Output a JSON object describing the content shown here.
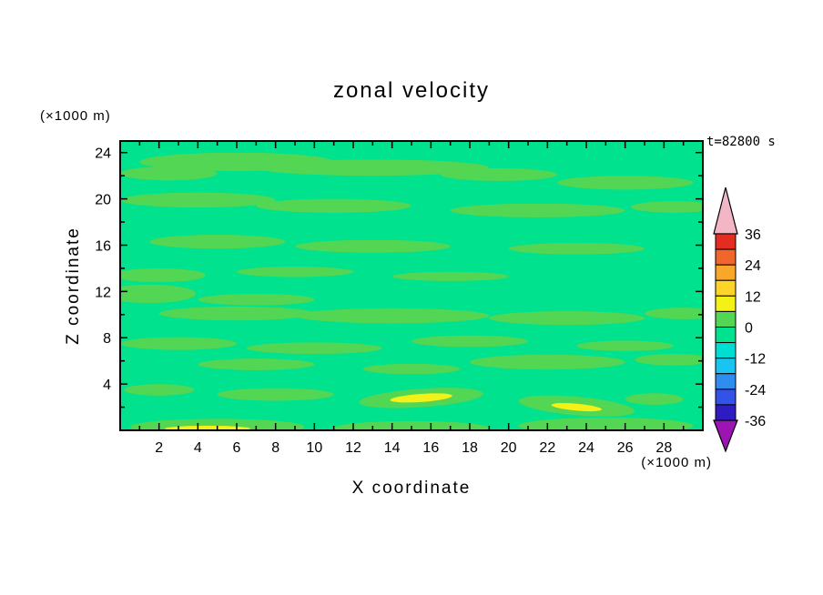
{
  "title": "zonal velocity",
  "time_label": "t=82800 s",
  "axes": {
    "x_label": "X coordinate",
    "x_units": "(×1000 m)",
    "y_label": "Z coordinate",
    "y_units": "(×1000 m)"
  },
  "chart_data": {
    "type": "heatmap",
    "title": "zonal velocity",
    "xlabel": "X coordinate (×1000 m)",
    "ylabel": "Z coordinate (×1000 m)",
    "time_label": "t=82800 s",
    "xlim": [
      0,
      30
    ],
    "ylim": [
      0,
      25
    ],
    "x_ticks": [
      2,
      4,
      6,
      8,
      10,
      12,
      14,
      16,
      18,
      20,
      22,
      24,
      26,
      28
    ],
    "y_ticks": [
      4,
      8,
      12,
      16,
      20,
      24
    ],
    "grid": false,
    "colorbar_position": "right",
    "colorbar": {
      "min": -36,
      "max": 36,
      "band_step": 6,
      "tick_labels": [
        36,
        24,
        12,
        0,
        -12,
        -24,
        -36
      ],
      "over_color": "#f2b6c6",
      "under_color": "#9c14b4",
      "bands": [
        {
          "range": [
            30,
            36
          ],
          "color": "#e42d22"
        },
        {
          "range": [
            24,
            30
          ],
          "color": "#f1662a"
        },
        {
          "range": [
            18,
            24
          ],
          "color": "#f9a72b"
        },
        {
          "range": [
            12,
            18
          ],
          "color": "#ffd428"
        },
        {
          "range": [
            6,
            12
          ],
          "color": "#f4f116"
        },
        {
          "range": [
            0,
            6
          ],
          "color": "#52d653"
        },
        {
          "range": [
            -6,
            0
          ],
          "color": "#00e28d"
        },
        {
          "range": [
            -12,
            -6
          ],
          "color": "#00ded2"
        },
        {
          "range": [
            -18,
            -12
          ],
          "color": "#19c4f1"
        },
        {
          "range": [
            -24,
            -18
          ],
          "color": "#2f8df0"
        },
        {
          "range": [
            -30,
            -24
          ],
          "color": "#3352e8"
        },
        {
          "range": [
            -36,
            -30
          ],
          "color": "#2d1dc0"
        }
      ]
    },
    "field": {
      "background_level": "-6..0",
      "background_color": "#00e28d",
      "blobs": [
        {
          "x": 6,
          "z": 23.2,
          "rx": 5,
          "rz": 0.8,
          "level": "0..6"
        },
        {
          "x": 13,
          "z": 22.7,
          "rx": 6,
          "rz": 0.7,
          "level": "0..6"
        },
        {
          "x": 2.5,
          "z": 22.2,
          "rx": 2.5,
          "rz": 0.6,
          "level": "0..6"
        },
        {
          "x": 19.5,
          "z": 22.1,
          "rx": 3,
          "rz": 0.55,
          "level": "0..6"
        },
        {
          "x": 26,
          "z": 21.4,
          "rx": 3.5,
          "rz": 0.6,
          "level": "0..6"
        },
        {
          "x": 4,
          "z": 19.9,
          "rx": 4,
          "rz": 0.65,
          "level": "0..6"
        },
        {
          "x": 11,
          "z": 19.4,
          "rx": 4,
          "rz": 0.6,
          "level": "0..6"
        },
        {
          "x": 21.5,
          "z": 19,
          "rx": 4.5,
          "rz": 0.6,
          "level": "0..6"
        },
        {
          "x": 28.5,
          "z": 19.3,
          "rx": 2.2,
          "rz": 0.5,
          "level": "0..6"
        },
        {
          "x": 5,
          "z": 16.3,
          "rx": 3.5,
          "rz": 0.6,
          "level": "0..6"
        },
        {
          "x": 13,
          "z": 15.9,
          "rx": 4,
          "rz": 0.55,
          "level": "0..6"
        },
        {
          "x": 23.5,
          "z": 15.7,
          "rx": 3.5,
          "rz": 0.5,
          "level": "0..6"
        },
        {
          "x": 2,
          "z": 13.4,
          "rx": 2.4,
          "rz": 0.6,
          "level": "0..6"
        },
        {
          "x": 9,
          "z": 13.7,
          "rx": 3,
          "rz": 0.45,
          "level": "0..6"
        },
        {
          "x": 17,
          "z": 13.3,
          "rx": 3,
          "rz": 0.4,
          "level": "0..6"
        },
        {
          "x": 1.5,
          "z": 11.8,
          "rx": 2.4,
          "rz": 0.8,
          "level": "0..6"
        },
        {
          "x": 7,
          "z": 11.3,
          "rx": 3,
          "rz": 0.5,
          "level": "0..6"
        },
        {
          "x": 6,
          "z": 10.1,
          "rx": 4,
          "rz": 0.6,
          "level": "0..6"
        },
        {
          "x": 14,
          "z": 9.9,
          "rx": 5,
          "rz": 0.65,
          "level": "0..6"
        },
        {
          "x": 23,
          "z": 9.7,
          "rx": 4,
          "rz": 0.6,
          "level": "0..6"
        },
        {
          "x": 29,
          "z": 10.1,
          "rx": 2,
          "rz": 0.5,
          "level": "0..6"
        },
        {
          "x": 3,
          "z": 7.5,
          "rx": 3,
          "rz": 0.55,
          "level": "0..6"
        },
        {
          "x": 10,
          "z": 7.1,
          "rx": 3.5,
          "rz": 0.5,
          "level": "0..6"
        },
        {
          "x": 18,
          "z": 7.7,
          "rx": 3,
          "rz": 0.5,
          "level": "0..6"
        },
        {
          "x": 26,
          "z": 7.3,
          "rx": 2.5,
          "rz": 0.45,
          "level": "0..6"
        },
        {
          "x": 7,
          "z": 5.7,
          "rx": 3,
          "rz": 0.5,
          "level": "0..6"
        },
        {
          "x": 15,
          "z": 5.3,
          "rx": 2.5,
          "rz": 0.45,
          "level": "0..6"
        },
        {
          "x": 22,
          "z": 5.9,
          "rx": 4,
          "rz": 0.65,
          "level": "0..6"
        },
        {
          "x": 28.5,
          "z": 6.1,
          "rx": 2,
          "rz": 0.5,
          "level": "0..6"
        },
        {
          "x": 2,
          "z": 3.5,
          "rx": 1.8,
          "rz": 0.5,
          "level": "0..6"
        },
        {
          "x": 8,
          "z": 3.1,
          "rx": 3,
          "rz": 0.55,
          "level": "0..6"
        },
        {
          "x": 15.5,
          "z": 2.8,
          "rx": 3.2,
          "rz": 0.8,
          "rot": -4,
          "level": "0..6"
        },
        {
          "x": 23.5,
          "z": 2.1,
          "rx": 3,
          "rz": 0.8,
          "rot": 5,
          "level": "0..6"
        },
        {
          "x": 27.5,
          "z": 2.7,
          "rx": 1.5,
          "rz": 0.5,
          "level": "0..6"
        },
        {
          "x": 5,
          "z": 0.3,
          "rx": 4.5,
          "rz": 0.7,
          "level": "0..6"
        },
        {
          "x": 15,
          "z": 0.2,
          "rx": 4,
          "rz": 0.6,
          "level": "0..6"
        },
        {
          "x": 25,
          "z": 0.4,
          "rx": 4.5,
          "rz": 0.7,
          "level": "0..6"
        },
        {
          "x": 15.5,
          "z": 2.8,
          "rx": 1.6,
          "rz": 0.35,
          "rot": -4,
          "level": "6..12"
        },
        {
          "x": 23.5,
          "z": 2,
          "rx": 1.3,
          "rz": 0.3,
          "rot": 5,
          "level": "6..12"
        },
        {
          "x": 4.5,
          "z": 0.15,
          "rx": 2.2,
          "rz": 0.25,
          "level": "6..12"
        }
      ]
    }
  }
}
